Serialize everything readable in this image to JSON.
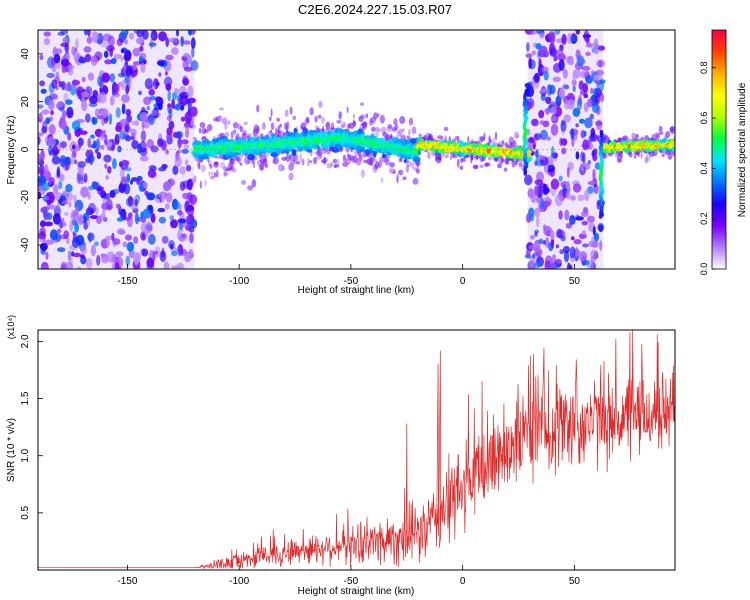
{
  "title": "C2E6.2024.227.15.03.R07",
  "chart_data": [
    {
      "type": "heatmap",
      "xlabel": "Height of straight line (km)",
      "ylabel": "Frequency (Hz)",
      "xlim": [
        -190,
        95
      ],
      "ylim": [
        -50,
        50
      ],
      "xticks": [
        -150,
        -100,
        -50,
        0,
        50
      ],
      "yticks": [
        -40,
        -20,
        0,
        20,
        40
      ],
      "colorbar": {
        "label": "Normalized spectral amplitude",
        "range": [
          0,
          0.95
        ],
        "ticks": [
          0.0,
          0.2,
          0.4,
          0.6,
          0.8
        ],
        "colors": [
          "#ffffff",
          "#b27cff",
          "#7a00ff",
          "#1a00ff",
          "#0077ff",
          "#00e5ff",
          "#00ff40",
          "#b0ff00",
          "#ffff00",
          "#ffb000",
          "#ff4000",
          "#ff0040"
        ]
      },
      "regions": [
        {
          "kind": "noise",
          "x": [
            -190,
            -120
          ],
          "density": "high"
        },
        {
          "kind": "band",
          "x": [
            -120,
            -20
          ],
          "center": [
            0,
            2,
            5,
            -1
          ],
          "width": 12,
          "peak": 0.45
        },
        {
          "kind": "band",
          "x": [
            -20,
            30
          ],
          "center": [
            2,
            0,
            -2
          ],
          "width": 6,
          "peak": 0.9
        },
        {
          "kind": "noise",
          "x": [
            29,
            63
          ],
          "density": "high"
        },
        {
          "kind": "band",
          "x": [
            63,
            95
          ],
          "center": [
            1,
            2
          ],
          "width": 5,
          "peak": 0.9
        }
      ],
      "features": [
        {
          "x": 28,
          "y_range": [
            -10,
            25
          ],
          "note": "vertical streak"
        },
        {
          "x": 62,
          "y_range": [
            -28,
            8
          ],
          "note": "vertical streak"
        }
      ]
    },
    {
      "type": "line",
      "xlabel": "Height of straight line (km)",
      "ylabel": "SNR (10 * v/v)",
      "y_multiplier": "(x10⁴)",
      "xlim": [
        -190,
        95
      ],
      "ylim": [
        0,
        2.1
      ],
      "xticks": [
        -150,
        -100,
        -50,
        0,
        50
      ],
      "yticks": [
        0.5,
        1.0,
        1.5,
        2.0
      ],
      "color": "#e02a2a",
      "series": [
        {
          "x": [
            -190,
            -150,
            -120,
            -110,
            -100,
            -90,
            -80,
            -70,
            -60,
            -50,
            -40,
            -30,
            -20,
            -15,
            -10,
            -5,
            0,
            10,
            20,
            30,
            40,
            50,
            60,
            70,
            80,
            90,
            95
          ],
          "mean": [
            0.02,
            0.02,
            0.02,
            0.04,
            0.08,
            0.12,
            0.15,
            0.18,
            0.2,
            0.22,
            0.25,
            0.28,
            0.32,
            0.38,
            0.5,
            0.6,
            0.7,
            0.9,
            1.1,
            1.2,
            1.25,
            1.3,
            1.3,
            1.32,
            1.35,
            1.38,
            1.4
          ],
          "spread": [
            0.0,
            0.0,
            0.0,
            0.05,
            0.08,
            0.1,
            0.12,
            0.13,
            0.15,
            0.18,
            0.2,
            0.25,
            0.28,
            0.3,
            0.35,
            0.4,
            0.4,
            0.42,
            0.42,
            0.42,
            0.42,
            0.42,
            0.4,
            0.4,
            0.38,
            0.36,
            0.35
          ]
        }
      ],
      "spikes": [
        {
          "x": -25,
          "y": 1.28
        },
        {
          "x": -10,
          "y": 1.92
        },
        {
          "x": -11,
          "y": 1.8
        }
      ]
    }
  ]
}
